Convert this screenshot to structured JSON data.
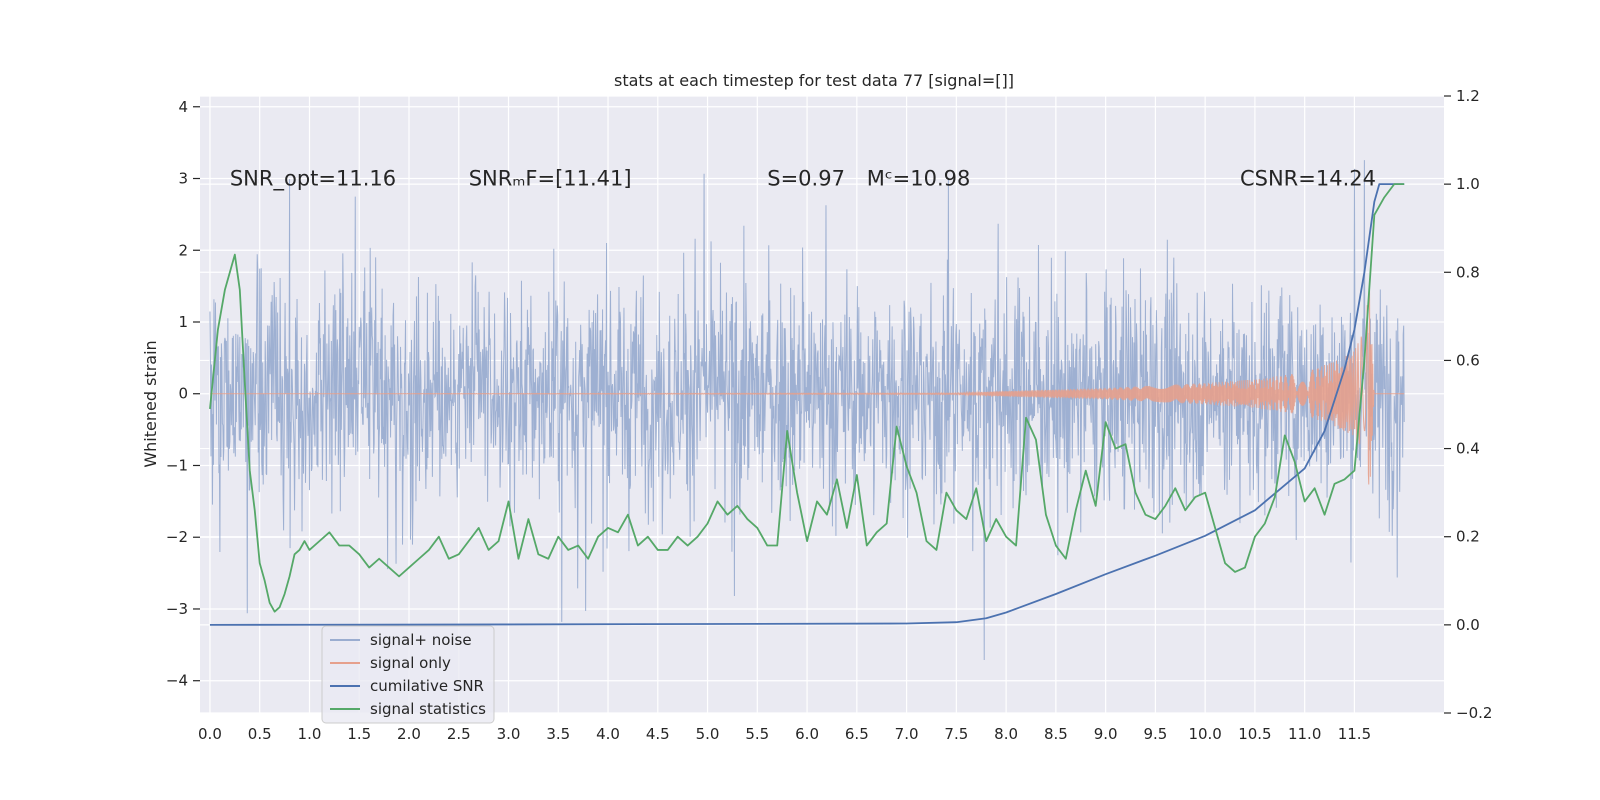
{
  "chart_data": {
    "type": "line",
    "title": "stats at each timestep for test data 77 [signal=[]]",
    "ylabel": "Whitened strain",
    "xlim": [
      -0.1,
      12.4
    ],
    "ylim": [
      -4.45,
      4.15
    ],
    "y2lim": [
      -0.2,
      1.2
    ],
    "x_ticks": [
      0.0,
      0.5,
      1.0,
      1.5,
      2.0,
      2.5,
      3.0,
      3.5,
      4.0,
      4.5,
      5.0,
      5.5,
      6.0,
      6.5,
      7.0,
      7.5,
      8.0,
      8.5,
      9.0,
      9.5,
      10.0,
      10.5,
      11.0,
      11.5
    ],
    "x_tick_labels": [
      "0.0",
      "0.5",
      "1.0",
      "1.5",
      "2.0",
      "2.5",
      "3.0",
      "3.5",
      "4.0",
      "4.5",
      "5.0",
      "5.5",
      "6.0",
      "6.5",
      "7.0",
      "7.5",
      "8.0",
      "8.5",
      "9.0",
      "9.5",
      "10.0",
      "10.5",
      "11.0",
      "11.5"
    ],
    "y_ticks": [
      -4,
      -3,
      -2,
      -1,
      0,
      1,
      2,
      3,
      4
    ],
    "y_tick_labels": [
      "−4",
      "−3",
      "−2",
      "−1",
      "0",
      "1",
      "2",
      "3",
      "4"
    ],
    "y2_ticks": [
      -0.2,
      0.0,
      0.2,
      0.4,
      0.6,
      0.8,
      1.0,
      1.2
    ],
    "y2_tick_labels": [
      "−0.2",
      "0.0",
      "0.2",
      "0.4",
      "0.6",
      "0.8",
      "1.0",
      "1.2"
    ],
    "grid": true,
    "legend_position": "lower-left",
    "annotations": [
      {
        "text": "SNR_opt=11.16",
        "x": 0.2,
        "y": 3.0
      },
      {
        "text": "SNRₘF=[11.41]",
        "x": 2.6,
        "y": 3.0
      },
      {
        "text": "S=0.97",
        "x": 5.6,
        "y": 3.0
      },
      {
        "text": "Mᶜ=10.98",
        "x": 6.6,
        "y": 3.0
      },
      {
        "text": "CSNR=14.24",
        "x": 10.35,
        "y": 3.0
      }
    ],
    "series": [
      {
        "name": "signal+ noise",
        "color": "#9aadd0",
        "axis": "left",
        "x_range": [
          0.0,
          12.0
        ],
        "amplitude_typical": 1.75,
        "amplitude_max": 3.8
      },
      {
        "name": "signal only",
        "color": "#e6a08c",
        "axis": "left",
        "envelope": {
          "x": [
            0.0,
            7.5,
            8.0,
            9.0,
            10.0,
            10.5,
            11.0,
            11.3,
            11.5,
            11.6,
            11.65,
            11.7,
            12.0
          ],
          "amplitude": [
            0.0,
            0.01,
            0.04,
            0.08,
            0.15,
            0.2,
            0.3,
            0.45,
            0.6,
            0.9,
            1.5,
            0.0,
            0.0
          ]
        }
      },
      {
        "name": "cumilative SNR",
        "color": "#4c72b0",
        "axis": "right",
        "x": [
          0.0,
          1.0,
          3.0,
          5.0,
          7.0,
          7.5,
          7.8,
          8.0,
          8.5,
          9.0,
          9.5,
          10.0,
          10.5,
          11.0,
          11.2,
          11.4,
          11.5,
          11.6,
          11.7,
          11.75,
          11.85,
          12.0
        ],
        "values": [
          0.0,
          0.0003,
          0.001,
          0.002,
          0.003,
          0.006,
          0.015,
          0.028,
          0.07,
          0.115,
          0.157,
          0.202,
          0.26,
          0.355,
          0.44,
          0.58,
          0.67,
          0.8,
          0.96,
          1.0,
          1.0,
          1.0
        ]
      },
      {
        "name": "signal statistics",
        "color": "#55a868",
        "axis": "right",
        "x": [
          0.0,
          0.08,
          0.15,
          0.2,
          0.25,
          0.3,
          0.35,
          0.4,
          0.45,
          0.5,
          0.55,
          0.6,
          0.65,
          0.7,
          0.75,
          0.8,
          0.85,
          0.9,
          0.95,
          1.0,
          1.1,
          1.2,
          1.3,
          1.4,
          1.5,
          1.6,
          1.7,
          1.8,
          1.9,
          2.0,
          2.1,
          2.2,
          2.3,
          2.4,
          2.5,
          2.6,
          2.7,
          2.8,
          2.9,
          3.0,
          3.1,
          3.2,
          3.3,
          3.4,
          3.5,
          3.6,
          3.7,
          3.8,
          3.9,
          4.0,
          4.1,
          4.2,
          4.3,
          4.4,
          4.5,
          4.6,
          4.7,
          4.8,
          4.9,
          5.0,
          5.1,
          5.2,
          5.3,
          5.4,
          5.5,
          5.6,
          5.7,
          5.8,
          5.9,
          6.0,
          6.1,
          6.2,
          6.3,
          6.4,
          6.5,
          6.6,
          6.7,
          6.8,
          6.9,
          7.0,
          7.1,
          7.2,
          7.3,
          7.4,
          7.5,
          7.6,
          7.7,
          7.8,
          7.9,
          8.0,
          8.1,
          8.2,
          8.3,
          8.4,
          8.5,
          8.6,
          8.7,
          8.8,
          8.9,
          9.0,
          9.1,
          9.2,
          9.3,
          9.4,
          9.5,
          9.6,
          9.7,
          9.8,
          9.9,
          10.0,
          10.1,
          10.2,
          10.3,
          10.4,
          10.5,
          10.6,
          10.7,
          10.8,
          10.9,
          11.0,
          11.1,
          11.2,
          11.3,
          11.4,
          11.5,
          11.6,
          11.7,
          11.8,
          11.9,
          12.0
        ],
        "values": [
          0.49,
          0.67,
          0.76,
          0.8,
          0.84,
          0.76,
          0.55,
          0.35,
          0.26,
          0.14,
          0.1,
          0.05,
          0.03,
          0.04,
          0.07,
          0.11,
          0.16,
          0.17,
          0.19,
          0.17,
          0.19,
          0.21,
          0.18,
          0.18,
          0.16,
          0.13,
          0.15,
          0.13,
          0.11,
          0.13,
          0.15,
          0.17,
          0.2,
          0.15,
          0.16,
          0.19,
          0.22,
          0.17,
          0.19,
          0.28,
          0.15,
          0.24,
          0.16,
          0.15,
          0.2,
          0.17,
          0.18,
          0.15,
          0.2,
          0.22,
          0.21,
          0.25,
          0.18,
          0.2,
          0.17,
          0.17,
          0.2,
          0.18,
          0.2,
          0.23,
          0.28,
          0.25,
          0.27,
          0.24,
          0.22,
          0.18,
          0.18,
          0.44,
          0.3,
          0.19,
          0.28,
          0.25,
          0.33,
          0.22,
          0.34,
          0.18,
          0.21,
          0.23,
          0.45,
          0.36,
          0.3,
          0.19,
          0.17,
          0.3,
          0.26,
          0.24,
          0.31,
          0.19,
          0.24,
          0.2,
          0.18,
          0.47,
          0.42,
          0.25,
          0.18,
          0.15,
          0.26,
          0.35,
          0.27,
          0.46,
          0.4,
          0.41,
          0.3,
          0.25,
          0.24,
          0.27,
          0.31,
          0.26,
          0.29,
          0.3,
          0.22,
          0.14,
          0.12,
          0.13,
          0.2,
          0.23,
          0.29,
          0.43,
          0.37,
          0.28,
          0.31,
          0.25,
          0.32,
          0.33,
          0.35,
          0.6,
          0.93,
          0.97,
          1.0,
          1.0
        ]
      }
    ]
  }
}
